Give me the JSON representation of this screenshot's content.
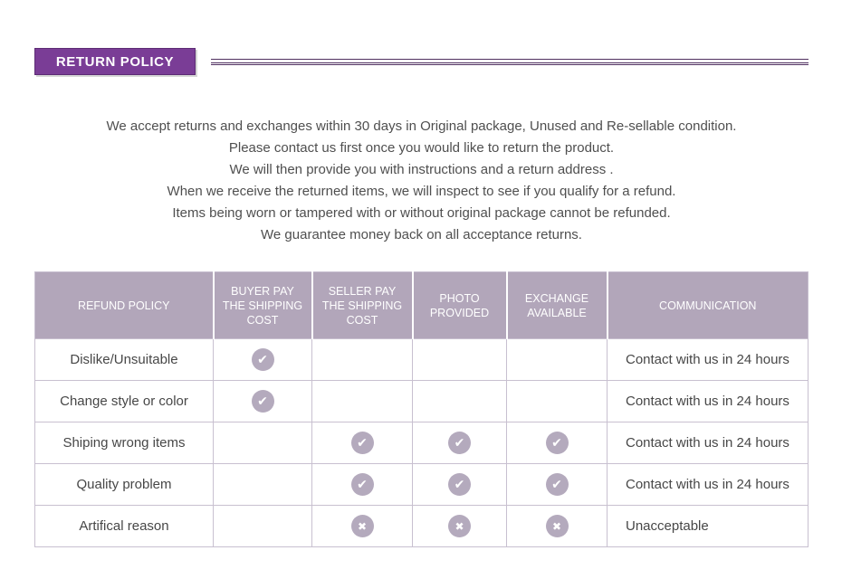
{
  "section": {
    "title": "RETURN POLICY"
  },
  "intro_lines": [
    "We accept returns and exchanges within 30 days in Original package, Unused and Re-sellable condition.",
    "Please contact us first once you would like to return the product.",
    "We will then provide you with instructions and a return address .",
    "When we receive the returned items, we will inspect to see if you qualify for a refund.",
    "Items being worn or tampered with or without original package cannot be refunded.",
    "We guarantee money back on all acceptance returns."
  ],
  "table": {
    "headers": [
      "REFUND POLICY",
      "BUYER PAY THE SHIPPING COST",
      "SELLER PAY THE SHIPPING COST",
      "PHOTO PROVIDED",
      "EXCHANGE AVAILABLE",
      "COMMUNICATION"
    ],
    "rows": [
      {
        "policy": "Dislike/Unsuitable",
        "marks": [
          "check",
          "",
          "",
          ""
        ],
        "communication": "Contact with us in 24 hours"
      },
      {
        "policy": "Change style or color",
        "marks": [
          "check",
          "",
          "",
          ""
        ],
        "communication": "Contact with us in 24 hours"
      },
      {
        "policy": "Shiping wrong items",
        "marks": [
          "",
          "check",
          "check",
          "check"
        ],
        "communication": "Contact with us in 24 hours"
      },
      {
        "policy": "Quality problem",
        "marks": [
          "",
          "check",
          "check",
          "check"
        ],
        "communication": "Contact with us in 24 hours"
      },
      {
        "policy": "Artifical reason",
        "marks": [
          "",
          "cross",
          "cross",
          "cross"
        ],
        "communication": "Unacceptable"
      }
    ]
  },
  "icons": {
    "check": "✔",
    "cross": "✖"
  },
  "colors": {
    "accent_purple": "#7a3d96",
    "rule_purple": "#503060",
    "table_header_bg": "#b2a6ba",
    "mark_circle": "#b4aabd",
    "table_border": "#c8c0d0",
    "body_text": "#4f4f4f"
  }
}
